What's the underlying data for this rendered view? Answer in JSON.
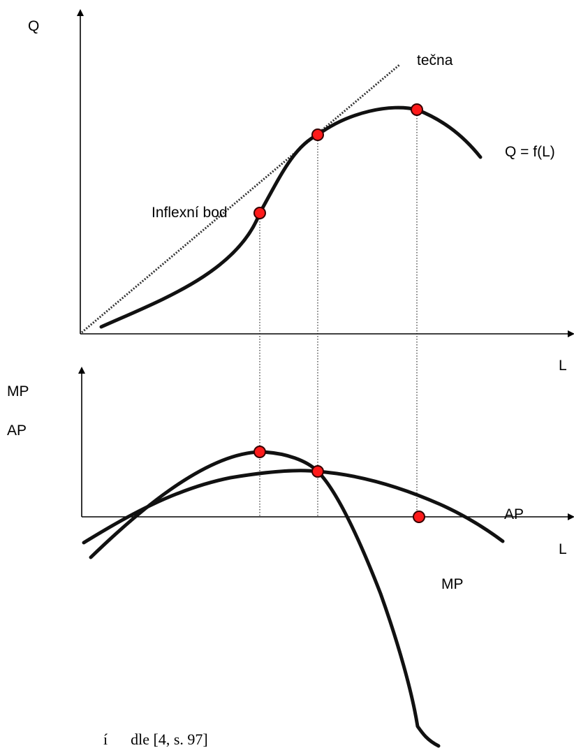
{
  "top_graph": {
    "y_axis_label": "Q",
    "x_axis_label": "L",
    "tangent_label": "tečna",
    "curve_label": "Q = f(L)",
    "inflection_label": "Inflexní bod"
  },
  "bottom_graph": {
    "y_axis_label_1": "MP",
    "y_axis_label_2": "AP",
    "x_axis_label": "L",
    "ap_curve_label": "AP",
    "mp_curve_label": "MP"
  },
  "source_caption": "í      dle [4, s. 97]"
}
